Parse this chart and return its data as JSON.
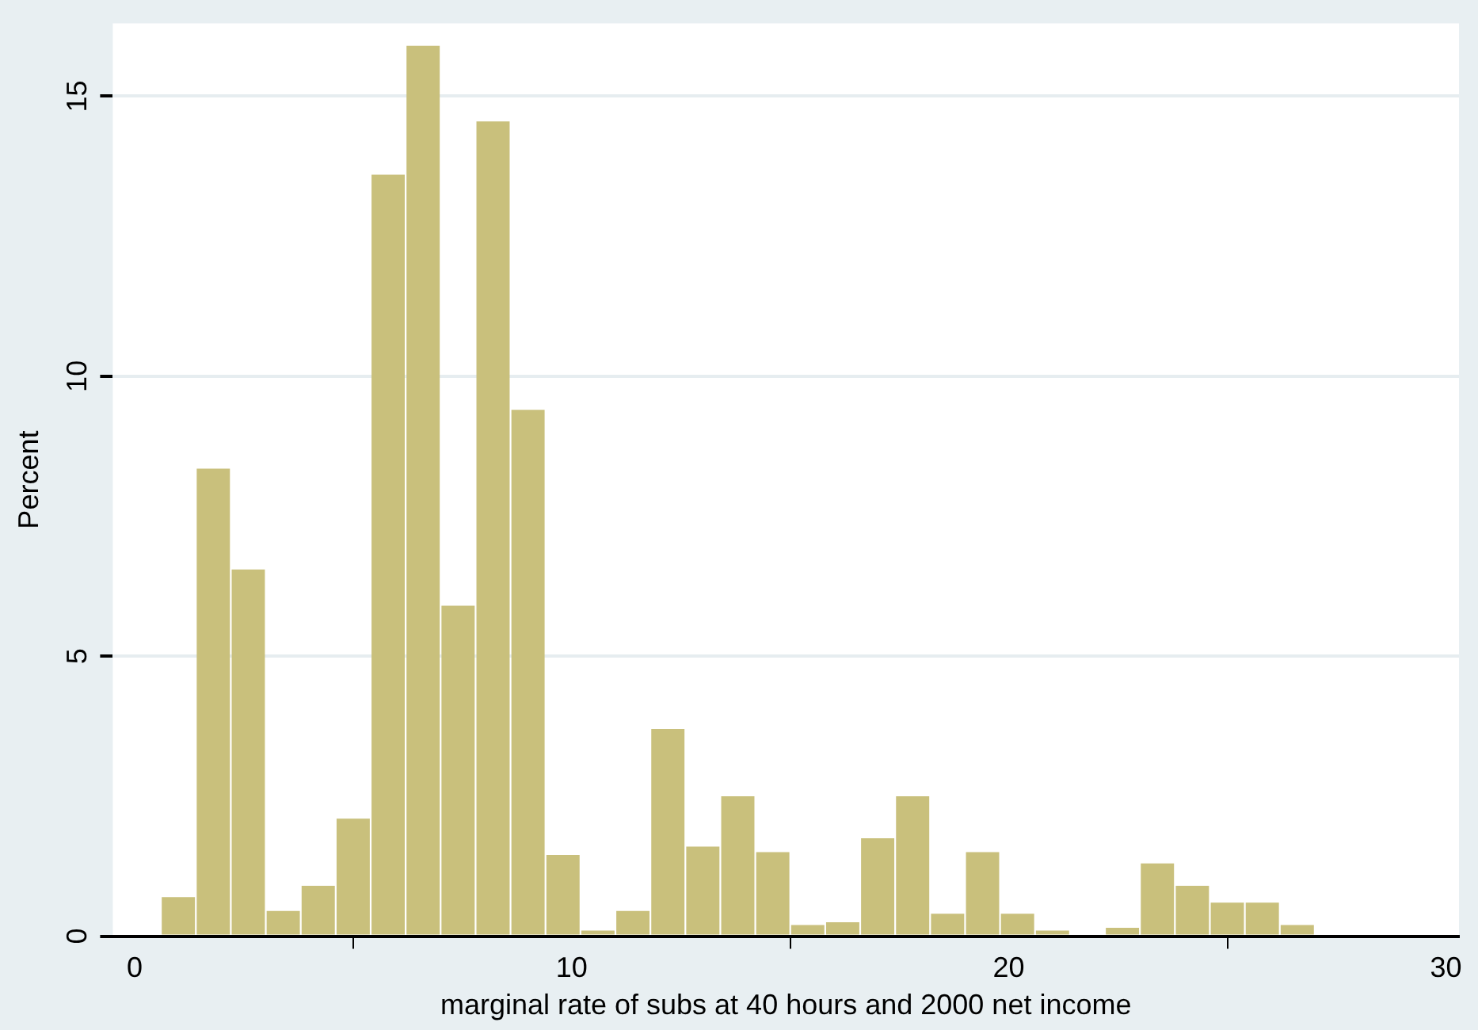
{
  "chart_data": {
    "type": "histogram",
    "xlabel": "marginal rate of subs at 40 hours and 2000 net income",
    "ylabel": "Percent",
    "bins": [
      0.6,
      1.4,
      2.2,
      3.0,
      3.8,
      4.6,
      5.4,
      6.2,
      7.0,
      7.8,
      8.6,
      9.4,
      10.2,
      11.0,
      11.8,
      12.6,
      13.4,
      14.2,
      15.0,
      15.8,
      16.6,
      17.4,
      18.2,
      19.0,
      19.8,
      20.6,
      21.4,
      22.2,
      23.0,
      23.8,
      24.6,
      25.4,
      26.2,
      27.0
    ],
    "values": [
      0.7,
      8.35,
      6.55,
      0.45,
      0.9,
      2.1,
      13.6,
      15.9,
      5.9,
      14.55,
      9.4,
      1.45,
      0.1,
      0.45,
      3.7,
      1.6,
      2.5,
      1.5,
      0.2,
      0.25,
      1.75,
      2.5,
      0.4,
      1.5,
      0.4,
      0.1,
      0,
      0.15,
      1.3,
      0.9,
      0.6,
      0.6,
      0.2
    ],
    "color": "#c9c07c",
    "xlim": [
      -0.5,
      30.3
    ],
    "ylim": [
      0,
      16.3
    ],
    "xticks": [
      0,
      10,
      20,
      30
    ],
    "yticks": [
      0,
      5,
      10,
      15
    ],
    "grid": "y",
    "legend": false
  }
}
